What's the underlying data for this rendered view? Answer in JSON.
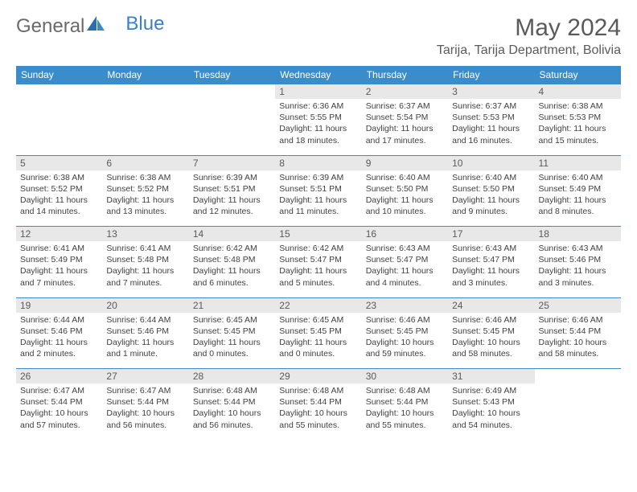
{
  "brand": {
    "general": "General",
    "blue": "Blue"
  },
  "title": "May 2024",
  "location": "Tarija, Tarija Department, Bolivia",
  "colors": {
    "header_bg": "#3b8ccb",
    "header_text": "#ffffff",
    "daynum_bg": "#e8e8e8",
    "border": "#3b8ccb",
    "text": "#404040",
    "title_text": "#5a5a5a"
  },
  "day_names": [
    "Sunday",
    "Monday",
    "Tuesday",
    "Wednesday",
    "Thursday",
    "Friday",
    "Saturday"
  ],
  "weeks": [
    [
      null,
      null,
      null,
      {
        "n": "1",
        "sr": "6:36 AM",
        "ss": "5:55 PM",
        "dl": "11 hours and 18 minutes."
      },
      {
        "n": "2",
        "sr": "6:37 AM",
        "ss": "5:54 PM",
        "dl": "11 hours and 17 minutes."
      },
      {
        "n": "3",
        "sr": "6:37 AM",
        "ss": "5:53 PM",
        "dl": "11 hours and 16 minutes."
      },
      {
        "n": "4",
        "sr": "6:38 AM",
        "ss": "5:53 PM",
        "dl": "11 hours and 15 minutes."
      }
    ],
    [
      {
        "n": "5",
        "sr": "6:38 AM",
        "ss": "5:52 PM",
        "dl": "11 hours and 14 minutes."
      },
      {
        "n": "6",
        "sr": "6:38 AM",
        "ss": "5:52 PM",
        "dl": "11 hours and 13 minutes."
      },
      {
        "n": "7",
        "sr": "6:39 AM",
        "ss": "5:51 PM",
        "dl": "11 hours and 12 minutes."
      },
      {
        "n": "8",
        "sr": "6:39 AM",
        "ss": "5:51 PM",
        "dl": "11 hours and 11 minutes."
      },
      {
        "n": "9",
        "sr": "6:40 AM",
        "ss": "5:50 PM",
        "dl": "11 hours and 10 minutes."
      },
      {
        "n": "10",
        "sr": "6:40 AM",
        "ss": "5:50 PM",
        "dl": "11 hours and 9 minutes."
      },
      {
        "n": "11",
        "sr": "6:40 AM",
        "ss": "5:49 PM",
        "dl": "11 hours and 8 minutes."
      }
    ],
    [
      {
        "n": "12",
        "sr": "6:41 AM",
        "ss": "5:49 PM",
        "dl": "11 hours and 7 minutes."
      },
      {
        "n": "13",
        "sr": "6:41 AM",
        "ss": "5:48 PM",
        "dl": "11 hours and 7 minutes."
      },
      {
        "n": "14",
        "sr": "6:42 AM",
        "ss": "5:48 PM",
        "dl": "11 hours and 6 minutes."
      },
      {
        "n": "15",
        "sr": "6:42 AM",
        "ss": "5:47 PM",
        "dl": "11 hours and 5 minutes."
      },
      {
        "n": "16",
        "sr": "6:43 AM",
        "ss": "5:47 PM",
        "dl": "11 hours and 4 minutes."
      },
      {
        "n": "17",
        "sr": "6:43 AM",
        "ss": "5:47 PM",
        "dl": "11 hours and 3 minutes."
      },
      {
        "n": "18",
        "sr": "6:43 AM",
        "ss": "5:46 PM",
        "dl": "11 hours and 3 minutes."
      }
    ],
    [
      {
        "n": "19",
        "sr": "6:44 AM",
        "ss": "5:46 PM",
        "dl": "11 hours and 2 minutes."
      },
      {
        "n": "20",
        "sr": "6:44 AM",
        "ss": "5:46 PM",
        "dl": "11 hours and 1 minute."
      },
      {
        "n": "21",
        "sr": "6:45 AM",
        "ss": "5:45 PM",
        "dl": "11 hours and 0 minutes."
      },
      {
        "n": "22",
        "sr": "6:45 AM",
        "ss": "5:45 PM",
        "dl": "11 hours and 0 minutes."
      },
      {
        "n": "23",
        "sr": "6:46 AM",
        "ss": "5:45 PM",
        "dl": "10 hours and 59 minutes."
      },
      {
        "n": "24",
        "sr": "6:46 AM",
        "ss": "5:45 PM",
        "dl": "10 hours and 58 minutes."
      },
      {
        "n": "25",
        "sr": "6:46 AM",
        "ss": "5:44 PM",
        "dl": "10 hours and 58 minutes."
      }
    ],
    [
      {
        "n": "26",
        "sr": "6:47 AM",
        "ss": "5:44 PM",
        "dl": "10 hours and 57 minutes."
      },
      {
        "n": "27",
        "sr": "6:47 AM",
        "ss": "5:44 PM",
        "dl": "10 hours and 56 minutes."
      },
      {
        "n": "28",
        "sr": "6:48 AM",
        "ss": "5:44 PM",
        "dl": "10 hours and 56 minutes."
      },
      {
        "n": "29",
        "sr": "6:48 AM",
        "ss": "5:44 PM",
        "dl": "10 hours and 55 minutes."
      },
      {
        "n": "30",
        "sr": "6:48 AM",
        "ss": "5:44 PM",
        "dl": "10 hours and 55 minutes."
      },
      {
        "n": "31",
        "sr": "6:49 AM",
        "ss": "5:43 PM",
        "dl": "10 hours and 54 minutes."
      },
      null
    ]
  ],
  "labels": {
    "sunrise": "Sunrise:",
    "sunset": "Sunset:",
    "daylight": "Daylight:"
  }
}
